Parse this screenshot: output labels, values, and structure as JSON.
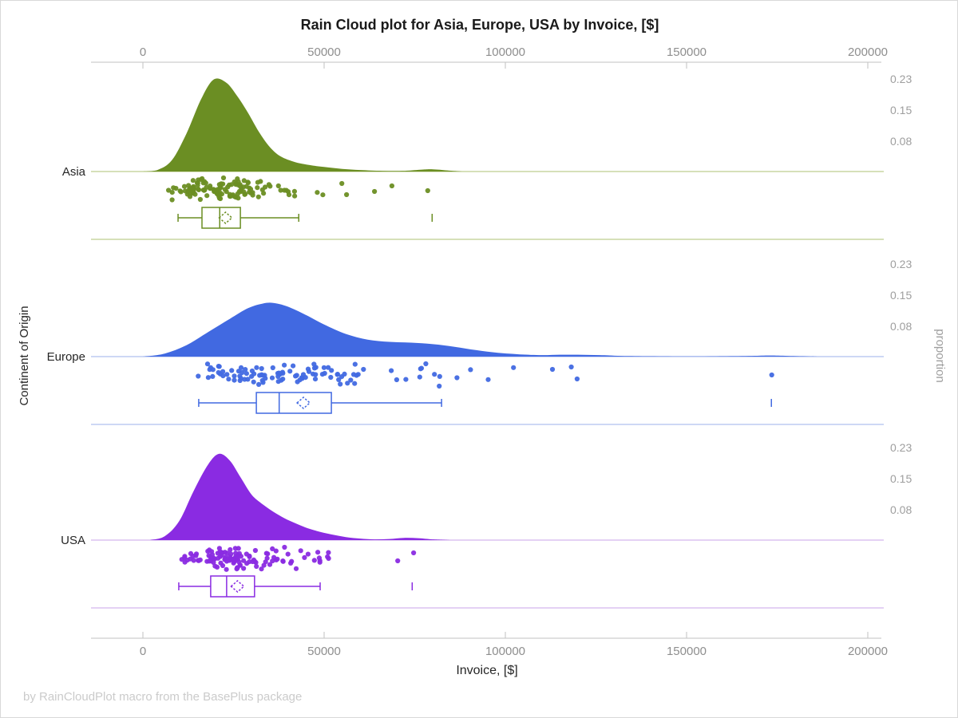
{
  "chart_data": {
    "type": "raincloud (half-violin density + jittered rain points + box plot with mean diamond)",
    "title": "Rain Cloud plot for Asia, Europe, USA by Invoice, [$]",
    "xlabel": "Invoice, [$]",
    "group_axis_label": "Continent of Origin",
    "density_axis_label": "proportion",
    "footer_note": "by RainCloudPlot macro from the BasePlus package",
    "x_ticks": [
      0,
      50000,
      100000,
      150000,
      200000
    ],
    "xlim": [
      -14000,
      204000
    ],
    "x_axis_shown": "top and bottom",
    "density_tick_values_per_group": [
      0.23,
      0.15,
      0.08
    ],
    "grid": "off",
    "legend": "none",
    "axis_color": "#c2c2c2",
    "groups": [
      {
        "label": "Asia",
        "color": "#6B8E23",
        "light_color": "#c9d6a2",
        "box": {
          "whisker_low": 9700,
          "q1": 16300,
          "median": 21200,
          "q3": 26900,
          "whisker_high": 43000,
          "mean": 22800,
          "outliers": [
            79800
          ]
        },
        "density": [
          [
            0,
            0
          ],
          [
            4000,
            0.004
          ],
          [
            8000,
            0.03
          ],
          [
            12000,
            0.1
          ],
          [
            16000,
            0.19
          ],
          [
            19500,
            0.243
          ],
          [
            23000,
            0.235
          ],
          [
            26000,
            0.2
          ],
          [
            29000,
            0.155
          ],
          [
            32000,
            0.105
          ],
          [
            35000,
            0.065
          ],
          [
            38000,
            0.04
          ],
          [
            42000,
            0.025
          ],
          [
            46000,
            0.017
          ],
          [
            50000,
            0.012
          ],
          [
            55000,
            0.007
          ],
          [
            60000,
            0.004
          ],
          [
            66000,
            0.002
          ],
          [
            72000,
            0.002
          ],
          [
            77000,
            0.005
          ],
          [
            80000,
            0.006
          ],
          [
            84000,
            0.003
          ],
          [
            88000,
            0
          ]
        ],
        "rain": {
          "n": 128,
          "seed": 11,
          "min": 7000,
          "max": 52000,
          "extra_points": [
            [
              54900,
              -8
            ],
            [
              56200,
              6
            ],
            [
              63900,
              2
            ],
            [
              68700,
              -5
            ],
            [
              78600,
              1
            ]
          ]
        }
      },
      {
        "label": "Europe",
        "color": "#4169E1",
        "light_color": "#bdcbf2",
        "box": {
          "whisker_low": 15400,
          "q1": 31300,
          "median": 37600,
          "q3": 52000,
          "whisker_high": 82400,
          "mean": 44300,
          "outliers": [
            173400
          ]
        },
        "density": [
          [
            0,
            0
          ],
          [
            6000,
            0.008
          ],
          [
            12000,
            0.03
          ],
          [
            18000,
            0.065
          ],
          [
            24000,
            0.1
          ],
          [
            29000,
            0.128
          ],
          [
            33000,
            0.14
          ],
          [
            36000,
            0.142
          ],
          [
            40000,
            0.132
          ],
          [
            45000,
            0.11
          ],
          [
            50000,
            0.085
          ],
          [
            56000,
            0.06
          ],
          [
            62000,
            0.045
          ],
          [
            68000,
            0.039
          ],
          [
            74000,
            0.037
          ],
          [
            80000,
            0.033
          ],
          [
            86000,
            0.026
          ],
          [
            92000,
            0.017
          ],
          [
            98000,
            0.01
          ],
          [
            104000,
            0.006
          ],
          [
            110000,
            0.004
          ],
          [
            115000,
            0.005
          ],
          [
            120000,
            0.005
          ],
          [
            126000,
            0.004
          ],
          [
            132000,
            0.002
          ],
          [
            140000,
            0.001
          ],
          [
            150000,
            0.0005
          ],
          [
            160000,
            0.001
          ],
          [
            168000,
            0.002
          ],
          [
            173000,
            0.003
          ],
          [
            178000,
            0.002
          ],
          [
            186000,
            0
          ]
        ],
        "rain": {
          "n": 108,
          "seed": 22,
          "min": 14500,
          "max": 108000,
          "extra_points": [
            [
              113000,
              -7
            ],
            [
              118200,
              -10
            ],
            [
              119800,
              5
            ],
            [
              173500,
              0
            ]
          ]
        }
      },
      {
        "label": "USA",
        "color": "#8A2BE2",
        "light_color": "#dcc2f0",
        "box": {
          "whisker_low": 9900,
          "q1": 18700,
          "median": 23100,
          "q3": 30800,
          "whisker_high": 48900,
          "mean": 26100,
          "outliers": [
            74300
          ]
        },
        "density": [
          [
            2000,
            0
          ],
          [
            6000,
            0.01
          ],
          [
            10000,
            0.05
          ],
          [
            14000,
            0.13
          ],
          [
            18000,
            0.2
          ],
          [
            21000,
            0.228
          ],
          [
            24000,
            0.21
          ],
          [
            27000,
            0.165
          ],
          [
            30000,
            0.12
          ],
          [
            33000,
            0.095
          ],
          [
            36000,
            0.075
          ],
          [
            39000,
            0.058
          ],
          [
            42000,
            0.045
          ],
          [
            45000,
            0.033
          ],
          [
            48000,
            0.024
          ],
          [
            52000,
            0.015
          ],
          [
            56000,
            0.008
          ],
          [
            60000,
            0.004
          ],
          [
            64000,
            0.002
          ],
          [
            68000,
            0.003
          ],
          [
            72000,
            0.006
          ],
          [
            76000,
            0.005
          ],
          [
            80000,
            0.002
          ],
          [
            85000,
            0
          ]
        ],
        "rain": {
          "n": 118,
          "seed": 33,
          "min": 9500,
          "max": 58000,
          "extra_points": [
            [
              70300,
              3
            ],
            [
              74700,
              -7
            ]
          ]
        }
      }
    ]
  }
}
